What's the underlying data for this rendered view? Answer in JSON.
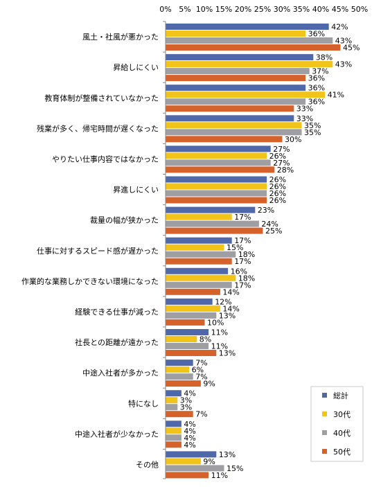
{
  "chart_data": {
    "type": "bar",
    "orientation": "horizontal",
    "categories": [
      "風土・社風が悪かった",
      "昇給しにくい",
      "教育体制が整備されていなかった",
      "残業が多く、帰宅時間が遅くなった",
      "やりたい仕事内容ではなかった",
      "昇進しにくい",
      "裁量の幅が狭かった",
      "仕事に対するスピード感が遅かった",
      "作業的な業務しかできない環境になった",
      "経験できる仕事が減った",
      "社長との距離が遠かった",
      "中途入社者が多かった",
      "特になし",
      "中途入社者が少なかった",
      "その他"
    ],
    "series": [
      {
        "name": "総計",
        "color": "#4f68a9",
        "values": [
          42,
          38,
          36,
          33,
          27,
          26,
          23,
          17,
          16,
          12,
          11,
          7,
          4,
          4,
          13
        ]
      },
      {
        "name": "30代",
        "color": "#f2c318",
        "values": [
          36,
          43,
          41,
          35,
          26,
          26,
          17,
          15,
          18,
          14,
          8,
          6,
          3,
          4,
          9
        ]
      },
      {
        "name": "40代",
        "color": "#9e9ea3",
        "values": [
          43,
          37,
          36,
          35,
          27,
          26,
          24,
          18,
          17,
          13,
          11,
          7,
          3,
          4,
          15
        ]
      },
      {
        "name": "50代",
        "color": "#d5612b",
        "values": [
          45,
          36,
          33,
          30,
          28,
          26,
          25,
          17,
          14,
          10,
          13,
          9,
          7,
          4,
          11
        ]
      }
    ],
    "x_ticks": [
      "0%",
      "5%",
      "10%",
      "15%",
      "20%",
      "25%",
      "30%",
      "35%",
      "40%",
      "45%",
      "50%"
    ],
    "xlim": [
      0,
      50
    ],
    "value_suffix": "%",
    "grid": false,
    "legend_position": "bottom-right"
  }
}
